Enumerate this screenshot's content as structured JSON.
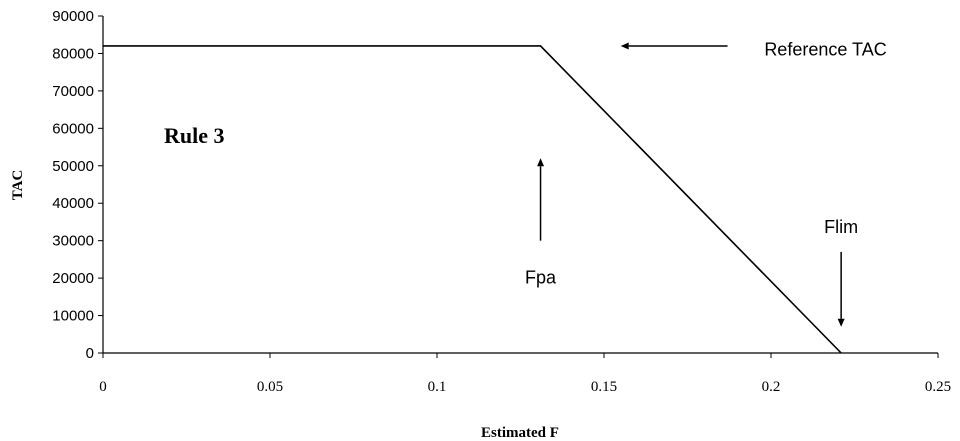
{
  "chart_data": {
    "type": "line",
    "title": "",
    "xlabel": "Estimated F",
    "ylabel": "TAC",
    "xlim": [
      0,
      0.25
    ],
    "ylim": [
      0,
      90000
    ],
    "x_ticks": [
      "0",
      "0.05",
      "0.1",
      "0.15",
      "0.2",
      "0.25"
    ],
    "y_ticks": [
      "0",
      "10000",
      "20000",
      "30000",
      "40000",
      "50000",
      "60000",
      "70000",
      "80000",
      "90000"
    ],
    "grid": false,
    "series": [
      {
        "x": [
          0,
          0.131,
          0.221
        ],
        "y": [
          82000,
          82000,
          0
        ],
        "color": "#000000"
      }
    ],
    "rule_label": "Rule 3",
    "annotations": [
      {
        "text": "Reference TAC",
        "arrow": "left",
        "arrow_x": [
          0.187,
          0.155
        ],
        "arrow_y": 82000,
        "text_x": 0.198,
        "text_y": 79500
      },
      {
        "text": "Fpa",
        "arrow": "up",
        "arrow_x": 0.131,
        "arrow_y": [
          30000,
          52000
        ],
        "text_x": 0.131,
        "text_y": 18500
      },
      {
        "text": "Flim",
        "arrow": "down",
        "arrow_x": 0.221,
        "arrow_y": [
          27000,
          7000
        ],
        "text_x": 0.221,
        "text_y": 32000
      }
    ]
  }
}
